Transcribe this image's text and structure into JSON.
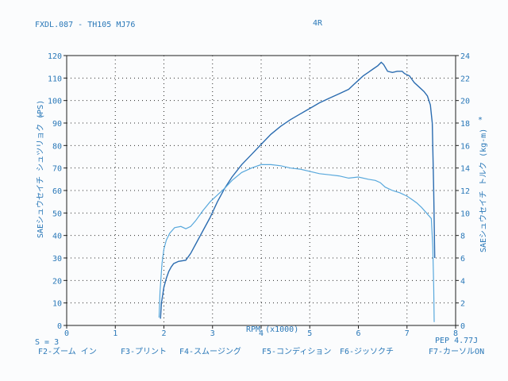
{
  "header": {
    "left": "FXDL.087 -  TH105 MJ76",
    "center": "4R"
  },
  "axes": {
    "xlabel": "RPM (x1000)",
    "ylabel_left": "SAEシュウセイチ シュツリョク (PS)",
    "ylabel_right": "SAEシュウセイチ トルク (kg-m)",
    "left_marker": "*",
    "right_marker": "*"
  },
  "footer": {
    "smoothing": "S = 3",
    "pep": "PEP 4.77J",
    "keys": [
      "F2-ズーム イン",
      "F3-プリント",
      "F4-スムージング",
      "F5-コンディション",
      "F6-ジッソクチ",
      "F7-カーソルON"
    ]
  },
  "colors": {
    "power": "#2b6cb0",
    "torque": "#58a8dc",
    "text": "#2a78b8",
    "frame": "#1f1f1f"
  },
  "chart_data": {
    "type": "line",
    "xlabel": "RPM (x1000)",
    "ylabel": "SAEシュウセイチ シュツリョク (PS)",
    "y2label": "SAEシュウセイチ トルク (kg-m)",
    "xlim": [
      0,
      8
    ],
    "ylim": [
      0,
      120
    ],
    "y2lim": [
      0,
      24
    ],
    "x_ticks": [
      0,
      1,
      2,
      3,
      4,
      5,
      6,
      7,
      8
    ],
    "y_ticks": [
      0,
      10,
      20,
      30,
      40,
      50,
      60,
      70,
      80,
      90,
      100,
      110,
      120
    ],
    "y2_ticks": [
      0,
      2,
      4,
      6,
      8,
      10,
      12,
      14,
      16,
      18,
      20,
      22,
      24
    ],
    "grid": true,
    "series": [
      {
        "axis": "left",
        "points": [
          [
            1.93,
            3
          ],
          [
            1.95,
            10
          ],
          [
            2.0,
            17
          ],
          [
            2.05,
            21
          ],
          [
            2.1,
            24
          ],
          [
            2.15,
            26
          ],
          [
            2.2,
            27.5
          ],
          [
            2.3,
            28.5
          ],
          [
            2.45,
            29
          ],
          [
            2.55,
            32
          ],
          [
            2.65,
            36
          ],
          [
            2.8,
            42
          ],
          [
            2.95,
            48
          ],
          [
            3.1,
            55
          ],
          [
            3.25,
            61
          ],
          [
            3.4,
            66
          ],
          [
            3.6,
            71.5
          ],
          [
            3.8,
            76
          ],
          [
            4.0,
            80.5
          ],
          [
            4.2,
            85
          ],
          [
            4.4,
            88.5
          ],
          [
            4.6,
            91.5
          ],
          [
            4.8,
            94
          ],
          [
            5.0,
            96.5
          ],
          [
            5.2,
            99
          ],
          [
            5.4,
            101
          ],
          [
            5.6,
            103
          ],
          [
            5.8,
            105
          ],
          [
            5.9,
            107
          ],
          [
            6.0,
            109
          ],
          [
            6.1,
            111
          ],
          [
            6.2,
            112.5
          ],
          [
            6.3,
            114
          ],
          [
            6.4,
            115.5
          ],
          [
            6.47,
            117
          ],
          [
            6.52,
            116
          ],
          [
            6.6,
            113
          ],
          [
            6.7,
            112.5
          ],
          [
            6.8,
            113
          ],
          [
            6.9,
            113
          ],
          [
            6.95,
            112
          ],
          [
            7.05,
            111
          ],
          [
            7.15,
            108
          ],
          [
            7.25,
            106
          ],
          [
            7.35,
            104
          ],
          [
            7.42,
            102
          ],
          [
            7.48,
            98
          ],
          [
            7.52,
            90
          ],
          [
            7.55,
            60
          ],
          [
            7.57,
            30
          ]
        ]
      },
      {
        "axis": "right",
        "points": [
          [
            1.9,
            0.7
          ],
          [
            1.92,
            3
          ],
          [
            1.96,
            5.5
          ],
          [
            2.0,
            6.8
          ],
          [
            2.05,
            7.6
          ],
          [
            2.12,
            8.2
          ],
          [
            2.22,
            8.7
          ],
          [
            2.35,
            8.8
          ],
          [
            2.45,
            8.6
          ],
          [
            2.55,
            8.8
          ],
          [
            2.65,
            9.3
          ],
          [
            2.8,
            10.2
          ],
          [
            2.95,
            11.0
          ],
          [
            3.1,
            11.6
          ],
          [
            3.25,
            12.2
          ],
          [
            3.4,
            12.9
          ],
          [
            3.6,
            13.6
          ],
          [
            3.8,
            14.0
          ],
          [
            4.0,
            14.3
          ],
          [
            4.2,
            14.3
          ],
          [
            4.4,
            14.2
          ],
          [
            4.6,
            14.0
          ],
          [
            4.8,
            13.9
          ],
          [
            5.0,
            13.7
          ],
          [
            5.2,
            13.5
          ],
          [
            5.4,
            13.4
          ],
          [
            5.6,
            13.3
          ],
          [
            5.8,
            13.1
          ],
          [
            6.0,
            13.2
          ],
          [
            6.2,
            13.0
          ],
          [
            6.35,
            12.9
          ],
          [
            6.45,
            12.7
          ],
          [
            6.55,
            12.3
          ],
          [
            6.7,
            12.0
          ],
          [
            6.85,
            11.8
          ],
          [
            7.0,
            11.5
          ],
          [
            7.1,
            11.2
          ],
          [
            7.2,
            10.9
          ],
          [
            7.3,
            10.5
          ],
          [
            7.4,
            10.0
          ],
          [
            7.5,
            9.5
          ],
          [
            7.53,
            7.0
          ],
          [
            7.55,
            3.5
          ],
          [
            7.56,
            0.3
          ]
        ]
      }
    ]
  }
}
